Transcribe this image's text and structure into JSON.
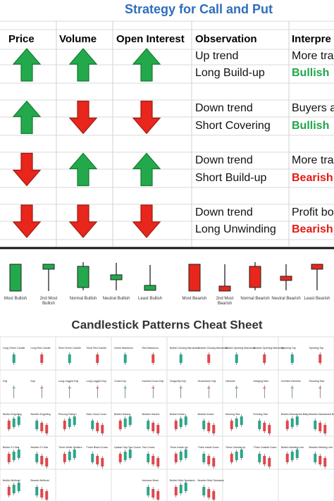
{
  "title": "Strategy for Call and Put",
  "headers": [
    "Price",
    "Volume",
    "Open Interest",
    "Observation",
    "Interpre"
  ],
  "groups": [
    {
      "price": "up",
      "volume": "up",
      "open_interest": "up",
      "observation": [
        "Up trend",
        "Long Build-up"
      ],
      "interpretation": [
        "More tra",
        "Bullish"
      ],
      "signal": "bullish"
    },
    {
      "price": "up",
      "volume": "down",
      "open_interest": "down",
      "observation": [
        "Down trend",
        "Short Covering"
      ],
      "interpretation": [
        "Buyers a",
        "Bullish"
      ],
      "signal": "bullish"
    },
    {
      "price": "down",
      "volume": "up",
      "open_interest": "up",
      "observation": [
        "Down trend",
        "Short Build-up"
      ],
      "interpretation": [
        "More tra",
        "Bearish"
      ],
      "signal": "bearish"
    },
    {
      "price": "down",
      "volume": "down",
      "open_interest": "down",
      "observation": [
        "Down trend",
        "Long Unwinding"
      ],
      "interpretation": [
        "Profit bo",
        "Bearish"
      ],
      "signal": "bearish"
    }
  ],
  "candle_strength": [
    "Most Bullish",
    "2nd Most Bullish",
    "Normal Bullish",
    "Neutral Bullish",
    "Least Bullish",
    "Most Bearish",
    "2nd Most Bearish",
    "Normal Bearish",
    "Neutral Bearish",
    "Least Bearish"
  ],
  "cheat_sheet": {
    "title": "Candlestick Patterns Cheat Sheet",
    "rows": [
      [
        "Long Green Candle",
        "Long Red Candle",
        "Short Green Candle",
        "Short Red Candle",
        "Green Marubozu",
        "Red Marubozu",
        "Bullish Closing Marubozu",
        "Bearish Closing Marubozu",
        "Bullish Opening Marubozu",
        "Bearish Opening Marubozu",
        "Spinning Top",
        "Spinning Top"
      ],
      [
        "Doji",
        "Doji",
        "Long Legged Doji",
        "Long Legged Doji",
        "Cross Doji",
        "Inverted Cross Doji",
        "Dragonfly Doji",
        "Gravestone Doji",
        "Hammer",
        "Hanging Man",
        "Inverted Hammer",
        "Shooting Star"
      ],
      [
        "Bullish Engulfing",
        "Bearish Engulfing",
        "Piercing Pattern",
        "Dark Cloud Cover",
        "Bullish Harami",
        "Bearish Harami",
        "Bullish Kicker",
        "Bearish Kicker",
        "Morning Star",
        "Evening Star",
        "Bullish Abandoned Baby",
        "Bearish Abandoned Baby"
      ],
      [
        "Bullish Tri Star",
        "Bearish Tri Star",
        "Three White Soldiers",
        "Three Black Crows",
        "Upside Gap Two Crows",
        "Two Crows",
        "Three Inside Up",
        "Three Inside Down",
        "Three Outside Up",
        "Three Outside Down",
        "Bullish Meeting Line",
        "Bearish Meeting Line"
      ],
      [
        "Bullish Belthold",
        "Bearish Belthold",
        "Advance Block",
        "Bullish Stick Sandwich",
        "Bearish Stick Sandwich"
      ]
    ]
  }
}
